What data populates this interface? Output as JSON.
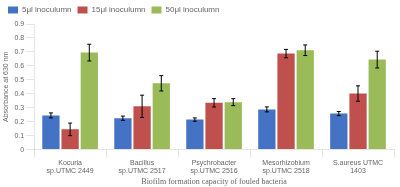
{
  "chart_data": {
    "type": "bar",
    "categories": [
      "Kocuria\nsp.UTMC 2449",
      "Bacillus\nsp.UTMC 2517",
      "Psychrobacter\nsp.UTMC 2516",
      "Mesorhizobium\nsp.UTMC 2518",
      "S.aureus UTMC\n1403"
    ],
    "series": [
      {
        "name": "5μl inoculumn",
        "color": "#4472C4",
        "values": [
          0.245,
          0.225,
          0.215,
          0.288,
          0.258
        ],
        "errors": [
          0.018,
          0.015,
          0.012,
          0.018,
          0.015
        ]
      },
      {
        "name": "15μl inoculumn",
        "color": "#C0504D",
        "values": [
          0.145,
          0.31,
          0.335,
          0.688,
          0.402
        ],
        "errors": [
          0.045,
          0.08,
          0.03,
          0.03,
          0.055
        ]
      },
      {
        "name": "50μl inoculumn",
        "color": "#9BBB59",
        "values": [
          0.695,
          0.475,
          0.34,
          0.712,
          0.645
        ],
        "errors": [
          0.06,
          0.055,
          0.025,
          0.038,
          0.06
        ]
      }
    ],
    "xlabel": "Biofilm formation capacity of fouled bacteria",
    "ylabel": "Absorbance at 630 nm",
    "ylim": [
      0,
      0.9
    ],
    "yticks": [
      0,
      0.1,
      0.2,
      0.3,
      0.4,
      0.5,
      0.6,
      0.7,
      0.8,
      0.9
    ],
    "grid": false,
    "legend": "upper left"
  }
}
